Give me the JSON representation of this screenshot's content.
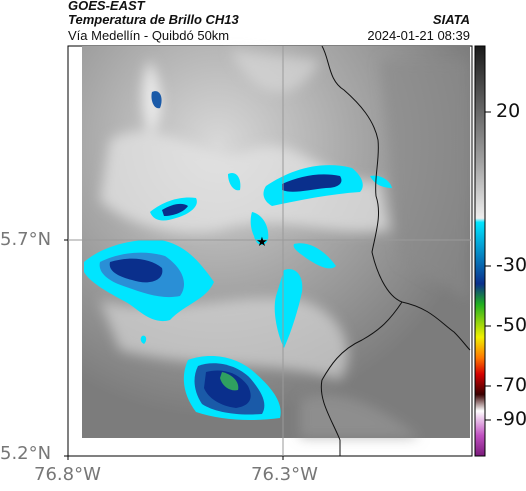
{
  "header": {
    "satellite": "GOES-EAST",
    "product": "Temperatura de Brillo CH13",
    "region": "Vía Medellín - Quibdó 50km",
    "agency": "SIATA",
    "datetime": "2024-01-21 08:39"
  },
  "axes": {
    "lat_ticks": [
      "5.7°N",
      "5.2°N"
    ],
    "lon_ticks": [
      "76.8°W",
      "76.3°W"
    ]
  },
  "colorbar": {
    "ticks": [
      "20",
      "-30",
      "-50",
      "-70",
      "-90"
    ],
    "colors": [
      "#f4f4f4",
      "#9a9a9a",
      "#2a2a2a",
      "#00e5ff",
      "#0a2f8c",
      "#20b020",
      "#f0f000",
      "#ff7a00",
      "#d60000",
      "#3a0000",
      "#ffffff",
      "#c050c0"
    ]
  },
  "marker": {
    "symbol": "★"
  }
}
